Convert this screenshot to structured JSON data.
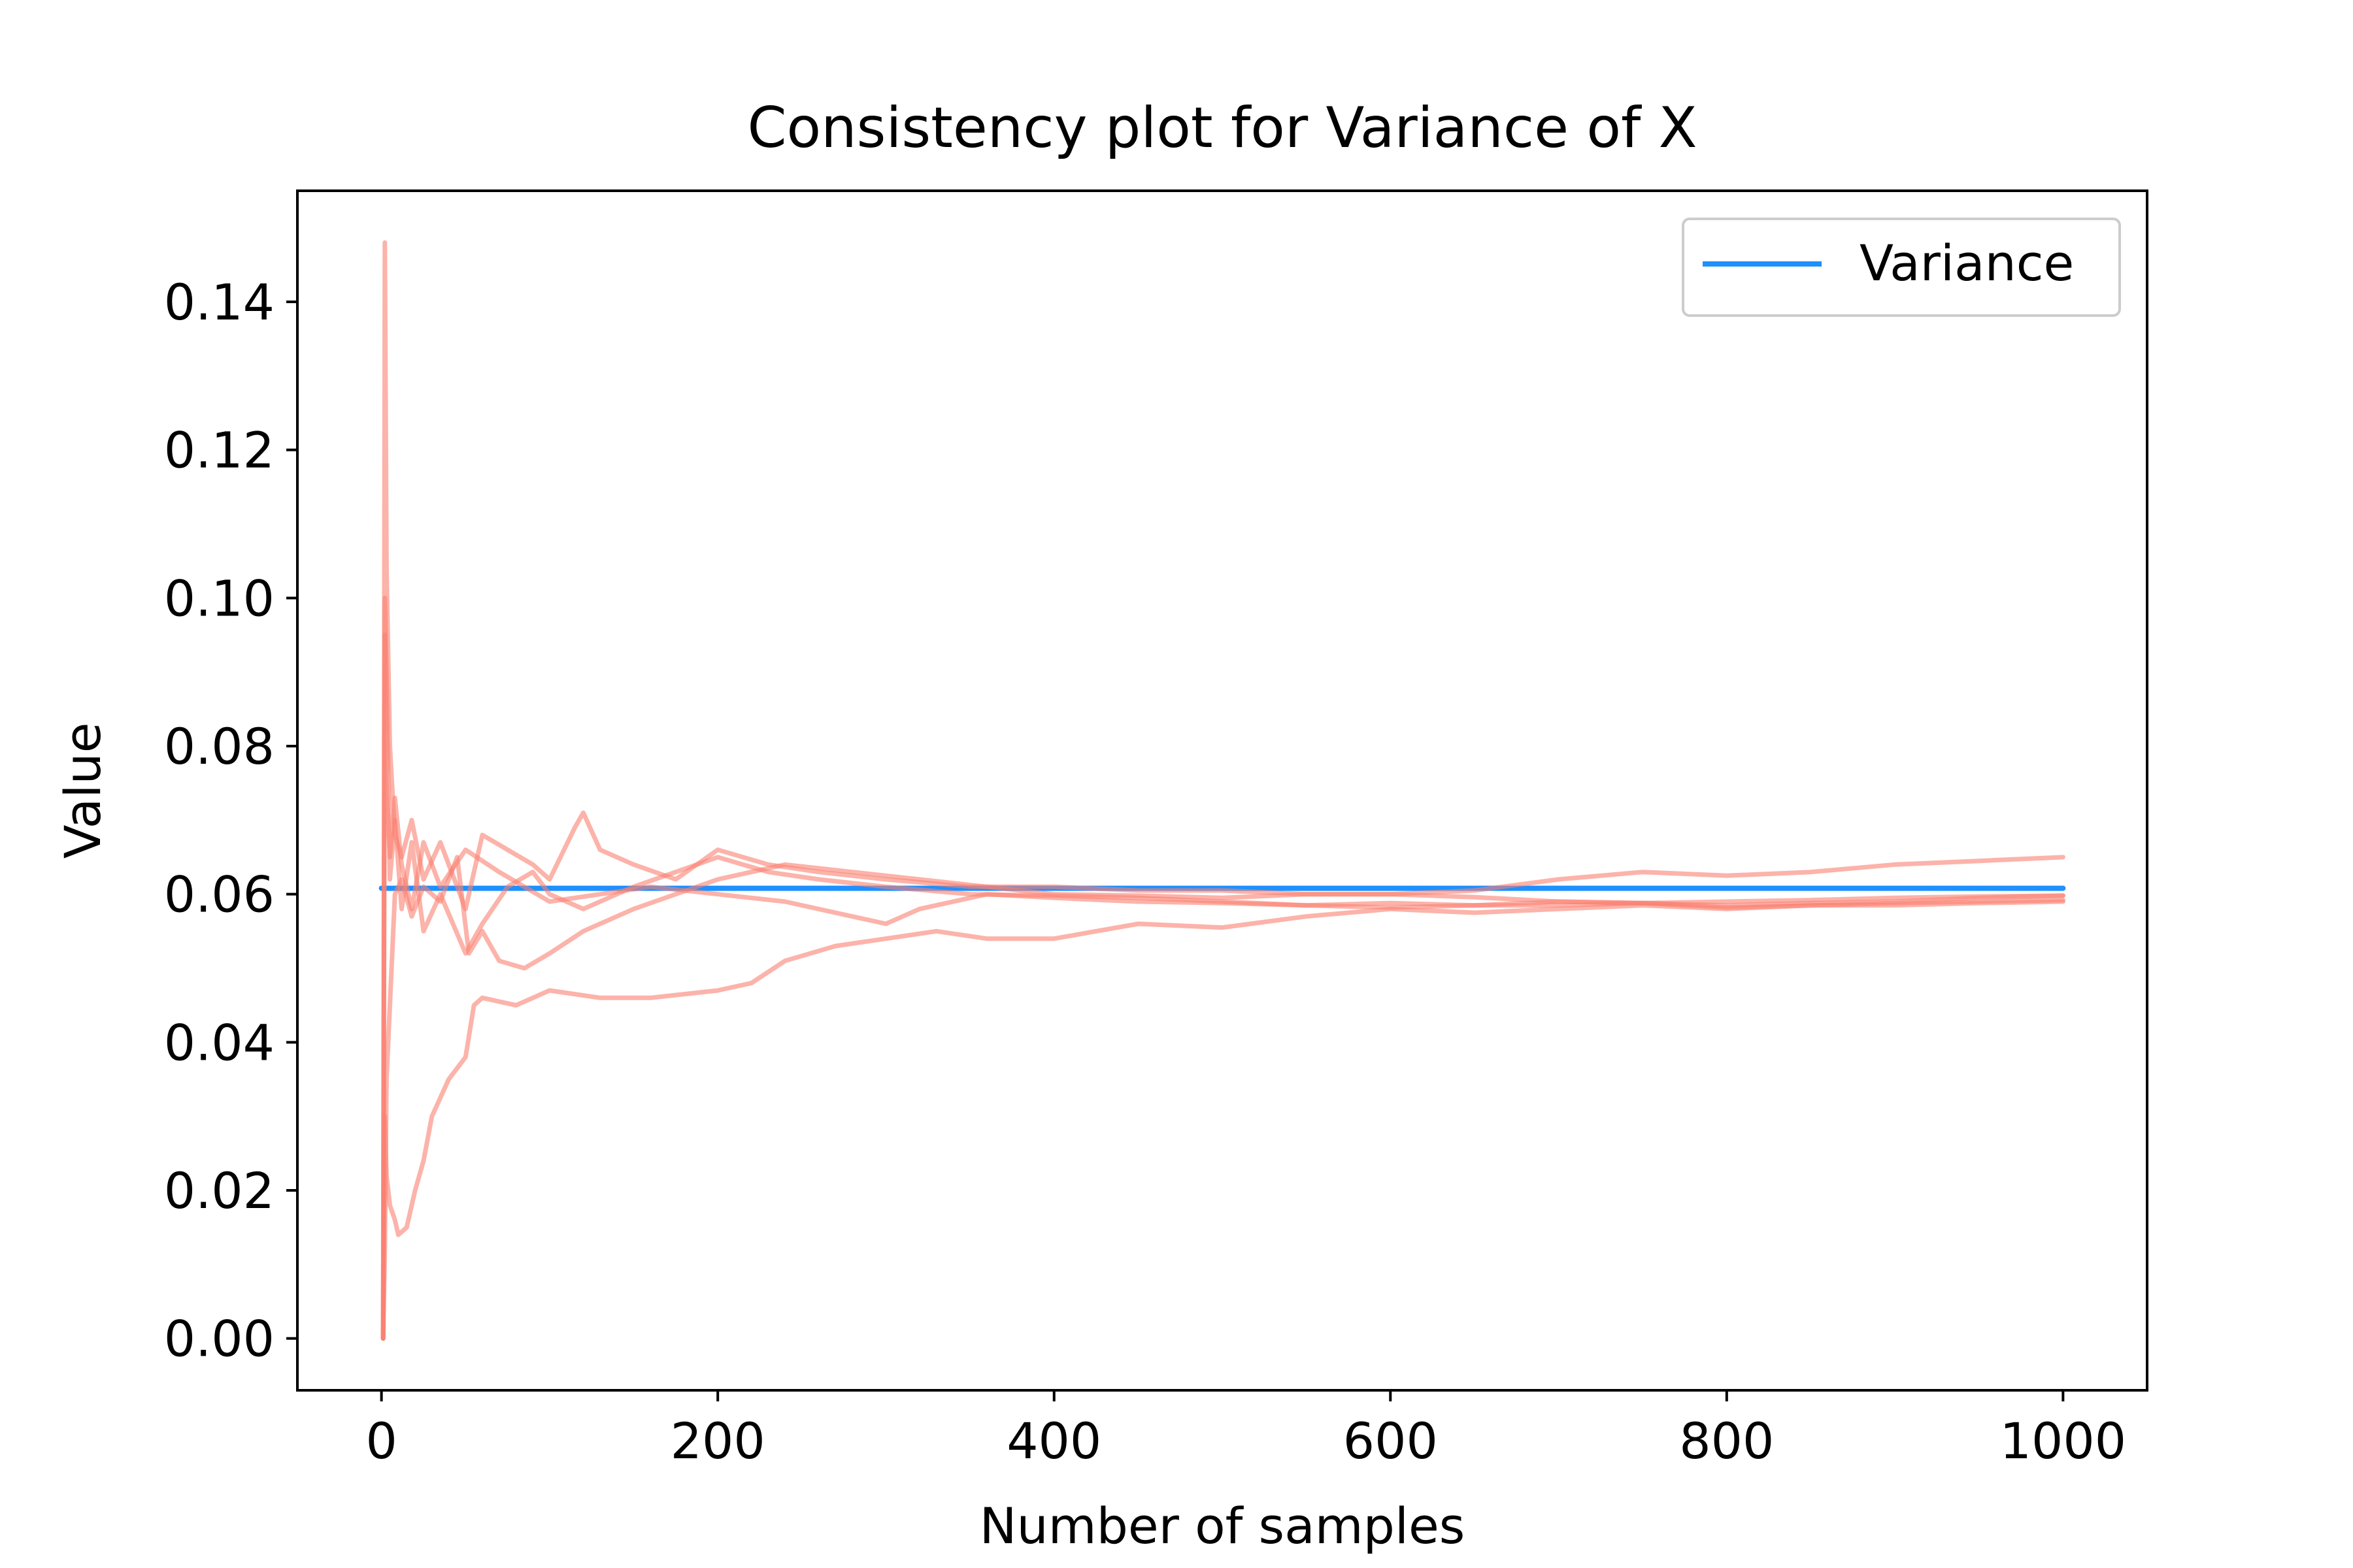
{
  "chart_data": {
    "type": "line",
    "title": "Consistency plot for Variance of X",
    "xlabel": "Number of samples",
    "ylabel": "Value",
    "xlim": [
      -50,
      1050
    ],
    "ylim": [
      -0.007,
      0.155
    ],
    "xticks": [
      0,
      200,
      400,
      600,
      800,
      1000
    ],
    "xtick_labels": [
      "0",
      "200",
      "400",
      "600",
      "800",
      "1000"
    ],
    "yticks": [
      0.0,
      0.02,
      0.04,
      0.06,
      0.08,
      0.1,
      0.12,
      0.14
    ],
    "ytick_labels": [
      "0.00",
      "0.02",
      "0.04",
      "0.06",
      "0.08",
      "0.10",
      "0.12",
      "0.14"
    ],
    "grid": false,
    "legend": {
      "position": "top-right",
      "entries": [
        "Variance"
      ]
    },
    "colors": {
      "variance": "#1e90ff",
      "runs": "#fa8072"
    },
    "series": [
      {
        "name": "Variance",
        "color": "#1e90ff",
        "x": [
          0,
          1000
        ],
        "y": [
          0.0608,
          0.0608
        ]
      },
      {
        "color": "#fa8072",
        "x": [
          1,
          2,
          3,
          5,
          8,
          12,
          18,
          25,
          35,
          50,
          60,
          75,
          90,
          100,
          115,
          120,
          130,
          150,
          175,
          200,
          230,
          260,
          300,
          350,
          400,
          450,
          500,
          550,
          600,
          650,
          700,
          750,
          800,
          850,
          900,
          950,
          1000
        ],
        "y": [
          0.0,
          0.148,
          0.104,
          0.08,
          0.068,
          0.065,
          0.07,
          0.062,
          0.067,
          0.058,
          0.068,
          0.066,
          0.064,
          0.062,
          0.069,
          0.071,
          0.066,
          0.064,
          0.062,
          0.066,
          0.064,
          0.063,
          0.062,
          0.061,
          0.061,
          0.0605,
          0.0605,
          0.06,
          0.06,
          0.0605,
          0.062,
          0.063,
          0.0625,
          0.063,
          0.064,
          0.0645,
          0.065
        ]
      },
      {
        "color": "#fa8072",
        "x": [
          1,
          2,
          3,
          5,
          8,
          12,
          18,
          25,
          35,
          50,
          60,
          75,
          90,
          100,
          120,
          150,
          175,
          200,
          230,
          260,
          300,
          350,
          400,
          450,
          500,
          550,
          600,
          650,
          700,
          750,
          800,
          850,
          900,
          950,
          1000
        ],
        "y": [
          0.0,
          0.1,
          0.09,
          0.062,
          0.07,
          0.058,
          0.067,
          0.055,
          0.06,
          0.052,
          0.056,
          0.061,
          0.063,
          0.06,
          0.058,
          0.061,
          0.063,
          0.065,
          0.063,
          0.062,
          0.061,
          0.06,
          0.0598,
          0.0595,
          0.059,
          0.0585,
          0.0582,
          0.0585,
          0.059,
          0.0588,
          0.0585,
          0.0588,
          0.059,
          0.0595,
          0.0598
        ]
      },
      {
        "color": "#fa8072",
        "x": [
          1,
          2,
          3,
          5,
          8,
          10,
          15,
          20,
          25,
          30,
          40,
          50,
          55,
          60,
          80,
          100,
          130,
          160,
          200,
          220,
          240,
          270,
          300,
          330,
          360,
          400,
          450,
          500,
          550,
          600,
          650,
          700,
          750,
          800,
          850,
          900,
          950,
          1000
        ],
        "y": [
          0.0,
          0.03,
          0.022,
          0.018,
          0.016,
          0.014,
          0.015,
          0.02,
          0.024,
          0.03,
          0.035,
          0.038,
          0.045,
          0.046,
          0.045,
          0.047,
          0.046,
          0.046,
          0.047,
          0.048,
          0.051,
          0.053,
          0.054,
          0.055,
          0.054,
          0.054,
          0.056,
          0.0555,
          0.057,
          0.058,
          0.0575,
          0.058,
          0.0585,
          0.058,
          0.0585,
          0.0585,
          0.0588,
          0.059
        ]
      },
      {
        "color": "#fa8072",
        "x": [
          1,
          2,
          3,
          5,
          8,
          12,
          18,
          25,
          35,
          45,
          52,
          60,
          70,
          85,
          100,
          120,
          150,
          200,
          240,
          280,
          320,
          360,
          400,
          450,
          500,
          550,
          600,
          650,
          700,
          750,
          800,
          850,
          900,
          950,
          1000
        ],
        "y": [
          0.0,
          0.012,
          0.035,
          0.045,
          0.06,
          0.062,
          0.057,
          0.061,
          0.059,
          0.065,
          0.052,
          0.055,
          0.051,
          0.05,
          0.052,
          0.055,
          0.058,
          0.062,
          0.064,
          0.063,
          0.062,
          0.061,
          0.06,
          0.0598,
          0.0595,
          0.06,
          0.06,
          0.0596,
          0.059,
          0.0588,
          0.059,
          0.0592,
          0.0595,
          0.0597,
          0.0598
        ]
      },
      {
        "color": "#fa8072",
        "x": [
          1,
          2,
          3,
          5,
          8,
          12,
          18,
          25,
          35,
          50,
          70,
          100,
          130,
          160,
          200,
          240,
          280,
          300,
          320,
          360,
          400,
          450,
          500,
          550,
          600,
          650,
          700,
          750,
          800,
          850,
          900,
          950,
          1000
        ],
        "y": [
          0.0,
          0.095,
          0.075,
          0.065,
          0.073,
          0.064,
          0.058,
          0.067,
          0.061,
          0.066,
          0.063,
          0.059,
          0.06,
          0.061,
          0.06,
          0.059,
          0.057,
          0.056,
          0.058,
          0.06,
          0.0595,
          0.059,
          0.0588,
          0.0585,
          0.0588,
          0.0585,
          0.0585,
          0.0588,
          0.0582,
          0.0585,
          0.0588,
          0.059,
          0.0592
        ]
      }
    ]
  }
}
